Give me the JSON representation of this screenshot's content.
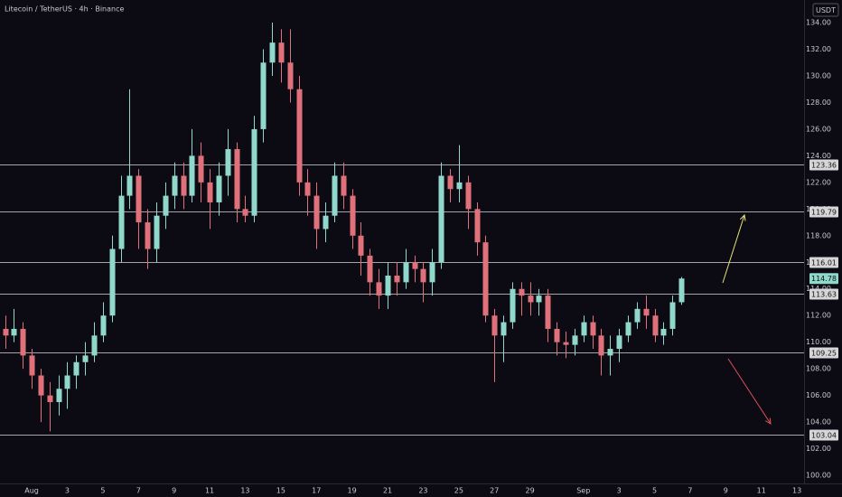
{
  "chart_data": {
    "type": "candlestick",
    "title": "Litecoin / TetherUS · 4h · Binance",
    "currency": "USDT",
    "x": [
      -1.5,
      -1,
      -0.5,
      0,
      0.5,
      1,
      1.5,
      2,
      2.5,
      3,
      3.5,
      4,
      4.5,
      5,
      5.5,
      6,
      6.5,
      7,
      7.5,
      8,
      8.5,
      9,
      9.5,
      10,
      10.5,
      11,
      11.5,
      12,
      12.5,
      13,
      13.5,
      14,
      14.5,
      15,
      15.5,
      16,
      16.5,
      17,
      17.5,
      18,
      18.5,
      19,
      19.5,
      20,
      20.5,
      21,
      21.5,
      22,
      22.5,
      23,
      23.5,
      24,
      24.5,
      25,
      25.5,
      26,
      26.5,
      27,
      27.5,
      28,
      28.5,
      29,
      29.5,
      30,
      30.5,
      31,
      31.5,
      32,
      32.5,
      33,
      33.5,
      34,
      34.5,
      35,
      35.5,
      36,
      36.5
    ],
    "open": [
      111,
      110.5,
      111,
      109,
      107.5,
      106,
      105.5,
      106.5,
      107.5,
      108.5,
      109,
      110.5,
      112,
      117,
      121,
      122.5,
      119,
      117,
      119.5,
      121,
      122.5,
      121,
      124,
      122,
      120.5,
      122.5,
      124.5,
      120,
      119.5,
      126,
      131,
      132.5,
      131,
      129,
      122,
      121,
      118.5,
      119.5,
      122.5,
      121,
      118,
      116.5,
      114.5,
      113.5,
      115,
      114.5,
      116,
      115.5,
      114.5,
      116,
      122.5,
      121.5,
      122,
      120,
      117.5,
      112,
      110.5,
      111.5,
      114,
      113.5,
      113,
      113.5,
      111,
      110,
      109.8,
      110.5,
      111.5,
      110.5,
      109,
      109.5,
      110.5,
      111.5,
      112.5,
      112,
      110.5,
      111,
      113
    ],
    "high": [
      112,
      112.5,
      111.5,
      109.5,
      108,
      107,
      107.5,
      108.5,
      109,
      110,
      111.5,
      113,
      118,
      122.5,
      129,
      123,
      120,
      120.5,
      122,
      123.5,
      123.5,
      126,
      125,
      123,
      123.5,
      126,
      125,
      121,
      127,
      132,
      134,
      133.5,
      133.5,
      130,
      123,
      122,
      120.5,
      123.5,
      123.5,
      121.5,
      119,
      117,
      115.5,
      116,
      116,
      117,
      116.5,
      116,
      117,
      123.5,
      123,
      124.8,
      122.5,
      120.5,
      118,
      112.5,
      112,
      114.5,
      114.5,
      114.5,
      114,
      114,
      111.5,
      110.8,
      111,
      112,
      112,
      111,
      110.5,
      111,
      112,
      113,
      113.5,
      112.5,
      111.5,
      113.5,
      114.9
    ],
    "low": [
      109.5,
      110,
      108,
      106.5,
      104,
      103.3,
      104.5,
      105,
      106.5,
      107.5,
      108.5,
      110,
      111.5,
      116,
      120,
      117,
      115.5,
      116,
      118.5,
      120,
      120,
      120.5,
      120.5,
      118.5,
      119.5,
      121,
      119,
      119,
      119,
      125,
      130,
      129.5,
      128,
      121,
      119.5,
      117,
      117.5,
      119,
      120,
      117,
      115,
      113.5,
      112.5,
      112.5,
      113.5,
      114,
      114.5,
      113,
      113.5,
      115.5,
      120.5,
      120.5,
      118.5,
      116.5,
      111.5,
      107,
      108.5,
      111,
      112,
      112,
      112,
      110,
      109,
      108.8,
      109,
      110,
      109.5,
      107.5,
      107.5,
      108.5,
      110,
      111,
      111,
      110,
      109.8,
      110.5,
      112.8
    ],
    "close": [
      110.5,
      111,
      109,
      107.5,
      106,
      105.5,
      106.5,
      107.5,
      108.5,
      109,
      110.5,
      112,
      117,
      121,
      122.5,
      119,
      117,
      119.5,
      121,
      122.5,
      121,
      124,
      122,
      120.5,
      122.5,
      124.5,
      120,
      119.5,
      126,
      131,
      132.5,
      131,
      129,
      122,
      121,
      118.5,
      119.5,
      122.5,
      121,
      118,
      116.5,
      114.5,
      113.5,
      115,
      114.5,
      116,
      115.5,
      114.5,
      116,
      122.5,
      121.5,
      122,
      120,
      117.5,
      112,
      110.5,
      111.5,
      114,
      113.5,
      113,
      113.5,
      111,
      110,
      109.8,
      110.5,
      111.5,
      110.5,
      109,
      109.5,
      110.5,
      111.5,
      112.5,
      112,
      110.5,
      111,
      113,
      114.78
    ],
    "up_color": "#8fd8cb",
    "down_color": "#e0707a",
    "levels": [
      123.36,
      119.79,
      116.01,
      113.63,
      109.25,
      103.04
    ],
    "xlim": [
      -1.78,
      43.4
    ],
    "ylim": [
      99.39,
      135.7
    ],
    "xticks": [
      {
        "value": 0,
        "label": "Aug"
      },
      {
        "value": 2,
        "label": "3"
      },
      {
        "value": 4,
        "label": "5"
      },
      {
        "value": 6,
        "label": "7"
      },
      {
        "value": 8,
        "label": "9"
      },
      {
        "value": 10,
        "label": "11"
      },
      {
        "value": 12,
        "label": "13"
      },
      {
        "value": 14,
        "label": "15"
      },
      {
        "value": 16,
        "label": "17"
      },
      {
        "value": 18,
        "label": "19"
      },
      {
        "value": 20,
        "label": "21"
      },
      {
        "value": 22,
        "label": "23"
      },
      {
        "value": 24,
        "label": "25"
      },
      {
        "value": 26,
        "label": "27"
      },
      {
        "value": 28,
        "label": "29"
      },
      {
        "value": 31,
        "label": "Sep"
      },
      {
        "value": 33,
        "label": "3"
      },
      {
        "value": 35,
        "label": "5"
      },
      {
        "value": 37,
        "label": "7"
      },
      {
        "value": 39,
        "label": "9"
      },
      {
        "value": 41,
        "label": "11"
      },
      {
        "value": 43,
        "label": "13"
      }
    ],
    "yticks": [
      {
        "value": 100,
        "label": "100.00"
      },
      {
        "value": 102,
        "label": "102.00"
      },
      {
        "value": 104,
        "label": "104.00"
      },
      {
        "value": 106,
        "label": "106.00"
      },
      {
        "value": 108,
        "label": "108.00"
      },
      {
        "value": 110,
        "label": "110.00"
      },
      {
        "value": 112,
        "label": "112.00"
      },
      {
        "value": 114,
        "label": "114.00"
      },
      {
        "value": 116,
        "label": "116.00"
      },
      {
        "value": 118,
        "label": "118.00"
      },
      {
        "value": 120,
        "label": "120.00"
      },
      {
        "value": 122,
        "label": "122.00"
      },
      {
        "value": 124,
        "label": "124.00"
      },
      {
        "value": 126,
        "label": "126.00"
      },
      {
        "value": 128,
        "label": "128.00"
      },
      {
        "value": 130,
        "label": "130.00"
      },
      {
        "value": 132,
        "label": "132.00"
      },
      {
        "value": 134,
        "label": "134.00"
      }
    ],
    "grid": false
  }
}
